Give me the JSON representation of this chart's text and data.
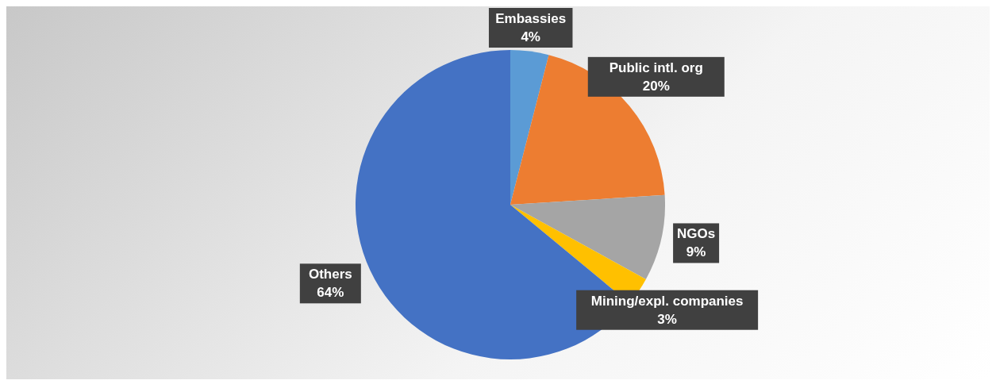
{
  "chart_data": {
    "type": "pie",
    "categories": [
      "Embassies",
      "Public intl. org",
      "NGOs",
      "Mining/expl. companies",
      "Others"
    ],
    "values": [
      4,
      20,
      9,
      3,
      64
    ],
    "colors": [
      "#5b9bd5",
      "#ed7d31",
      "#a5a5a5",
      "#ffc000",
      "#4472c4"
    ],
    "value_labels": [
      "4%",
      "20%",
      "9%",
      "3%",
      "64%"
    ],
    "legend": false
  }
}
